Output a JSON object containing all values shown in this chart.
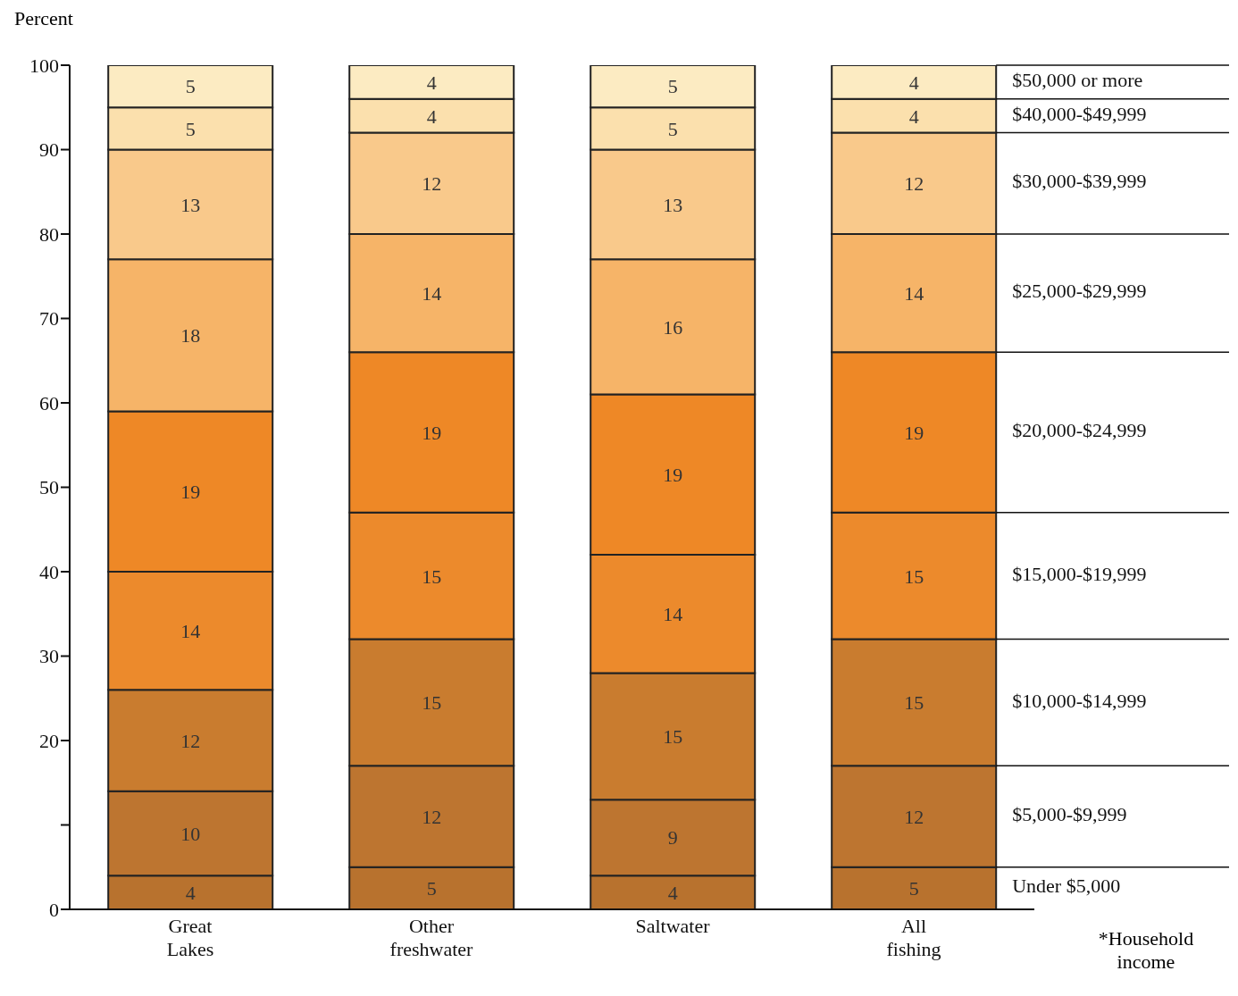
{
  "chart_data": {
    "type": "bar",
    "stacked": true,
    "ylabel": "Percent",
    "legend_title": "*Household income",
    "categories": [
      "Great Lakes",
      "Other freshwater",
      "Saltwater",
      "All fishing"
    ],
    "series": [
      {
        "name": "Under $5,000",
        "color": "#b8722e",
        "values": [
          4,
          5,
          4,
          5
        ]
      },
      {
        "name": "$5,000-$9,999",
        "color": "#bd7530",
        "values": [
          10,
          12,
          9,
          12
        ]
      },
      {
        "name": "$10,000-$14,999",
        "color": "#c97c2f",
        "values": [
          12,
          15,
          15,
          15
        ]
      },
      {
        "name": "$15,000-$19,999",
        "color": "#ec8a2c",
        "values": [
          14,
          15,
          14,
          15
        ]
      },
      {
        "name": "$20,000-$24,999",
        "color": "#ee8826",
        "values": [
          19,
          19,
          19,
          19
        ]
      },
      {
        "name": "$25,000-$29,999",
        "color": "#f6b468",
        "values": [
          18,
          14,
          16,
          14
        ]
      },
      {
        "name": "$30,000-$39,999",
        "color": "#f9c98b",
        "values": [
          13,
          12,
          13,
          12
        ]
      },
      {
        "name": "$40,000-$49,999",
        "color": "#fbe0ad",
        "values": [
          5,
          4,
          5,
          4
        ]
      },
      {
        "name": "$50,000 or more",
        "color": "#fcebc2",
        "values": [
          5,
          4,
          5,
          4
        ]
      }
    ],
    "ylim": [
      0,
      100
    ],
    "yticks": [
      0,
      {
        "value": 10,
        "label": null
      },
      20,
      30,
      40,
      50,
      60,
      70,
      80,
      90,
      100
    ],
    "data_labels": true
  }
}
